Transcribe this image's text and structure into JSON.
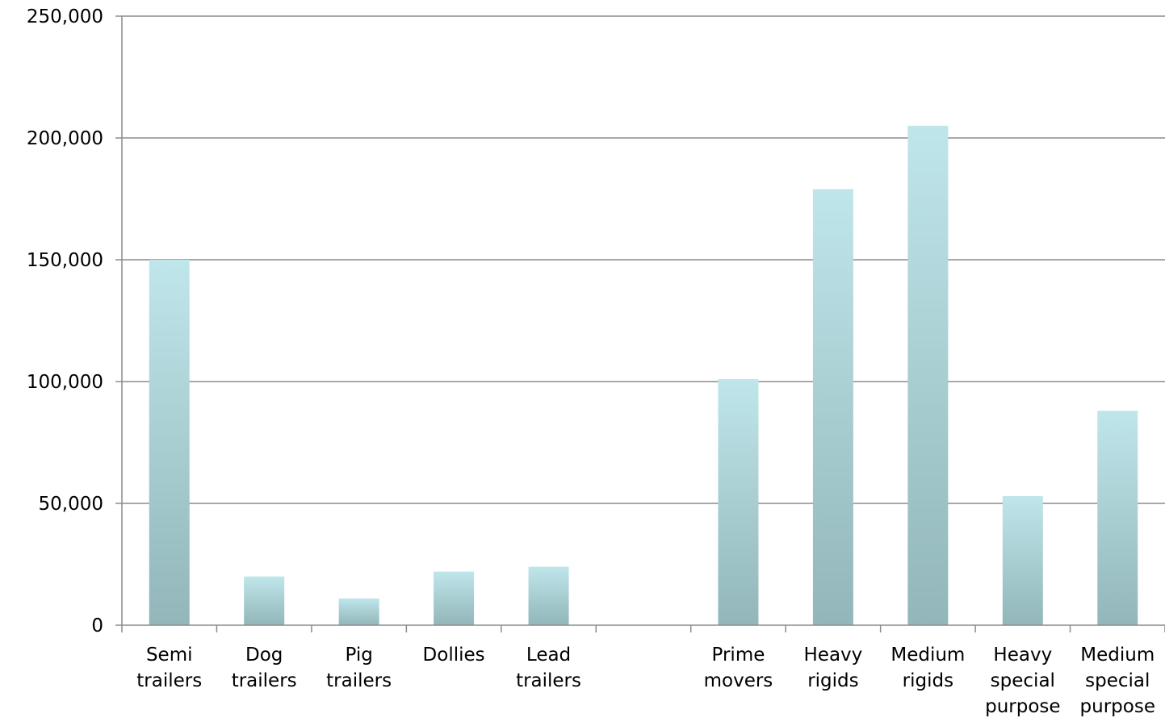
{
  "chart_data": {
    "type": "bar",
    "categories": [
      [
        "Semi",
        "trailers"
      ],
      [
        "Dog",
        "trailers"
      ],
      [
        "Pig",
        "trailers"
      ],
      [
        "Dollies"
      ],
      [
        "Lead",
        "trailers"
      ],
      [],
      [
        "Prime",
        "movers"
      ],
      [
        "Heavy",
        "rigids"
      ],
      [
        "Medium",
        "rigids"
      ],
      [
        "Heavy",
        "special",
        "purpose"
      ],
      [
        "Medium",
        "special",
        "purpose"
      ]
    ],
    "values": [
      150000,
      20000,
      11000,
      22000,
      24000,
      null,
      101000,
      179000,
      205000,
      53000,
      88000
    ],
    "title": "",
    "xlabel": "",
    "ylabel": "",
    "ylim": [
      0,
      250000
    ],
    "yticks": [
      0,
      50000,
      100000,
      150000,
      200000,
      250000
    ],
    "ytick_labels": [
      "0",
      "50,000",
      "100,000",
      "150,000",
      "200,000",
      "250,000"
    ],
    "grid": true,
    "legend": "none",
    "colors": {
      "bar_top": "#bfe6eb",
      "bar_bottom": "#92b6b9",
      "grid": "#8c8c8c",
      "axis": "#8c8c8c"
    }
  }
}
